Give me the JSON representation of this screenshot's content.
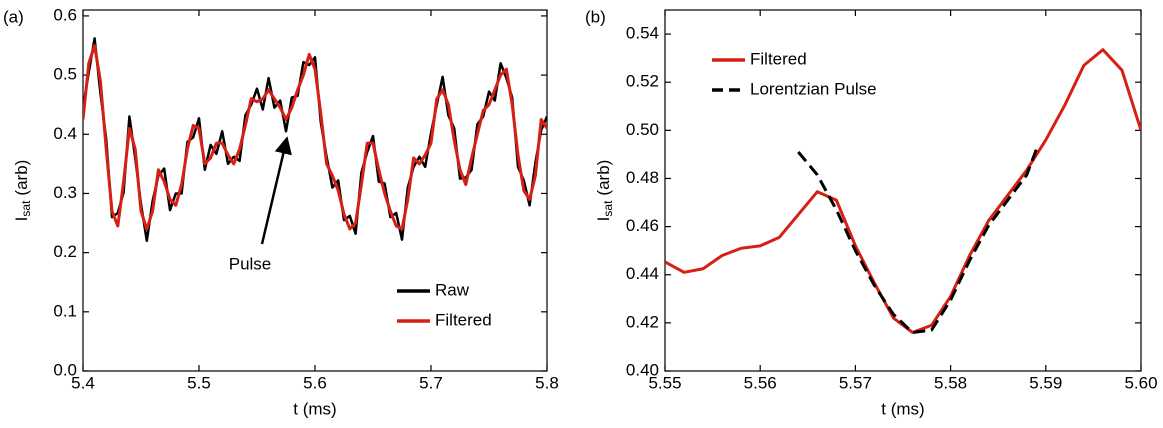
{
  "chart_data": [
    {
      "type": "line",
      "panel_label": "(a)",
      "xlabel": "t (ms)",
      "ylabel": [
        "I",
        "sat",
        "(arb)"
      ],
      "xlim": [
        5.4,
        5.8
      ],
      "xticks": [
        5.4,
        5.5,
        5.6,
        5.7,
        5.8
      ],
      "ylim": [
        0,
        0.61
      ],
      "yticks": [
        {
          "value": 0,
          "label": "0.0"
        },
        0.1,
        0.2,
        0.3,
        0.4,
        0.5,
        0.6
      ],
      "legend": "lower right",
      "annotation": "Pulse",
      "x": [
        5.4,
        5.405,
        5.41,
        5.415,
        5.42,
        5.425,
        5.43,
        5.435,
        5.44,
        5.445,
        5.45,
        5.455,
        5.46,
        5.465,
        5.47,
        5.475,
        5.48,
        5.485,
        5.49,
        5.495,
        5.5,
        5.505,
        5.51,
        5.515,
        5.52,
        5.525,
        5.53,
        5.535,
        5.54,
        5.545,
        5.55,
        5.555,
        5.56,
        5.565,
        5.57,
        5.575,
        5.58,
        5.585,
        5.59,
        5.595,
        5.6,
        5.605,
        5.61,
        5.615,
        5.62,
        5.625,
        5.63,
        5.635,
        5.64,
        5.645,
        5.65,
        5.655,
        5.66,
        5.665,
        5.67,
        5.675,
        5.68,
        5.685,
        5.69,
        5.695,
        5.7,
        5.705,
        5.71,
        5.715,
        5.72,
        5.725,
        5.73,
        5.735,
        5.74,
        5.745,
        5.75,
        5.755,
        5.76,
        5.765,
        5.77,
        5.775,
        5.78,
        5.785,
        5.79,
        5.795,
        5.8
      ],
      "series": [
        {
          "name": "Raw",
          "color": "#000000",
          "style": "solid",
          "values": [
            0.445,
            0.505,
            0.562,
            0.47,
            0.392,
            0.26,
            0.267,
            0.302,
            0.43,
            0.36,
            0.282,
            0.22,
            0.287,
            0.33,
            0.342,
            0.272,
            0.3,
            0.3,
            0.387,
            0.395,
            0.427,
            0.34,
            0.382,
            0.367,
            0.405,
            0.35,
            0.362,
            0.355,
            0.432,
            0.45,
            0.477,
            0.442,
            0.495,
            0.445,
            0.457,
            0.405,
            0.462,
            0.465,
            0.522,
            0.517,
            0.53,
            0.42,
            0.362,
            0.31,
            0.322,
            0.255,
            0.262,
            0.232,
            0.335,
            0.37,
            0.397,
            0.32,
            0.317,
            0.26,
            0.267,
            0.222,
            0.31,
            0.345,
            0.362,
            0.345,
            0.402,
            0.45,
            0.497,
            0.432,
            0.41,
            0.325,
            0.327,
            0.34,
            0.417,
            0.43,
            0.472,
            0.457,
            0.52,
            0.495,
            0.462,
            0.345,
            0.322,
            0.28,
            0.352,
            0.407,
            0.43
          ]
        },
        {
          "name": "Filtered",
          "color": "#d62015",
          "style": "solid",
          "values": [
            0.425,
            0.52,
            0.55,
            0.49,
            0.375,
            0.27,
            0.245,
            0.32,
            0.41,
            0.375,
            0.27,
            0.24,
            0.27,
            0.34,
            0.32,
            0.29,
            0.28,
            0.315,
            0.375,
            0.415,
            0.41,
            0.35,
            0.36,
            0.385,
            0.385,
            0.365,
            0.35,
            0.375,
            0.415,
            0.46,
            0.455,
            0.46,
            0.475,
            0.46,
            0.445,
            0.425,
            0.445,
            0.475,
            0.5,
            0.535,
            0.51,
            0.435,
            0.35,
            0.33,
            0.305,
            0.265,
            0.24,
            0.25,
            0.315,
            0.385,
            0.385,
            0.34,
            0.3,
            0.27,
            0.245,
            0.24,
            0.29,
            0.36,
            0.35,
            0.365,
            0.385,
            0.46,
            0.475,
            0.45,
            0.39,
            0.34,
            0.315,
            0.36,
            0.4,
            0.44,
            0.45,
            0.475,
            0.5,
            0.51,
            0.45,
            0.365,
            0.305,
            0.29,
            0.33,
            0.425,
            0.41
          ]
        }
      ]
    },
    {
      "type": "line",
      "panel_label": "(b)",
      "xlabel": "t (ms)",
      "ylabel": [
        "I",
        "sat",
        "(arb)"
      ],
      "xlim": [
        5.55,
        5.6
      ],
      "xticks": [
        5.55,
        5.56,
        5.57,
        5.58,
        5.59,
        {
          "value": 5.6,
          "label": "5.60"
        }
      ],
      "ylim": [
        0.4,
        0.55
      ],
      "yticks": [
        {
          "value": 0.4,
          "label": "0.40"
        },
        0.42,
        0.44,
        0.46,
        0.48,
        {
          "value": 0.5,
          "label": "0.50"
        },
        0.52,
        0.54
      ],
      "legend": "upper left",
      "series": [
        {
          "name": "Filtered",
          "color": "#d62015",
          "style": "solid",
          "x": [
            5.55,
            5.552,
            5.554,
            5.556,
            5.558,
            5.56,
            5.562,
            5.564,
            5.566,
            5.568,
            5.57,
            5.572,
            5.574,
            5.576,
            5.578,
            5.58,
            5.582,
            5.584,
            5.586,
            5.588,
            5.59,
            5.592,
            5.594,
            5.596,
            5.598,
            5.6
          ],
          "values": [
            0.4453,
            0.441,
            0.4425,
            0.448,
            0.451,
            0.452,
            0.4555,
            0.465,
            0.4745,
            0.471,
            0.452,
            0.4365,
            0.422,
            0.416,
            0.419,
            0.431,
            0.448,
            0.4625,
            0.473,
            0.4835,
            0.496,
            0.5105,
            0.527,
            0.5335,
            0.525,
            0.5
          ]
        },
        {
          "name": "Lorentzian Pulse",
          "color": "#000000",
          "style": "dashed",
          "x": [
            5.564,
            5.566,
            5.568,
            5.57,
            5.572,
            5.574,
            5.576,
            5.578,
            5.58,
            5.582,
            5.584,
            5.586,
            5.588,
            5.589
          ],
          "values": [
            0.491,
            0.4815,
            0.467,
            0.45,
            0.4355,
            0.4235,
            0.416,
            0.417,
            0.4295,
            0.446,
            0.4605,
            0.471,
            0.4815,
            0.492
          ]
        }
      ]
    }
  ]
}
